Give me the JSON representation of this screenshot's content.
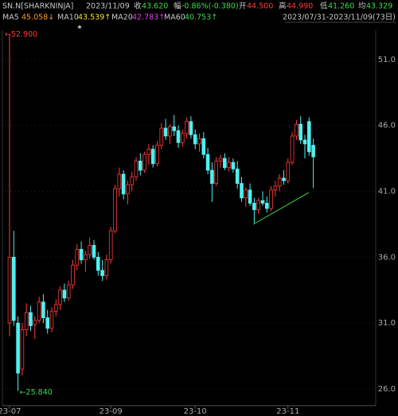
{
  "header": {
    "symbol": "SN.N[SHARKNINJA]",
    "date": "2023/11/09",
    "quote": [
      {
        "label": "收",
        "value": "43.620",
        "color": "#3ddc4a"
      },
      {
        "label": "幅",
        "value": "-0.86%(-0.380)",
        "color": "#3ddc4a"
      },
      {
        "label": "开",
        "value": "44.500",
        "color": "#ff3b3b"
      },
      {
        "label": "高",
        "value": "44.990",
        "color": "#ff3b3b"
      },
      {
        "label": "低",
        "value": "41.260",
        "color": "#3ddc4a"
      },
      {
        "label": "均",
        "value": "43.329",
        "color": "#3ddc4a"
      }
    ],
    "ma": [
      {
        "label": "MA5",
        "value": "45.058↓",
        "color": "#ff9a1f"
      },
      {
        "label": "MA10",
        "value": "43.539↑",
        "color": "#f2e12c"
      },
      {
        "label": "MA20",
        "value": "42.783↑",
        "color": "#e040e8"
      },
      {
        "label": "MA60",
        "value": "40.753↑",
        "color": "#3ddc4a"
      }
    ],
    "range": "2023/07/31-2023/11/09(73日)"
  },
  "chart_data": {
    "type": "candlestick",
    "categories": [
      "23-07",
      null,
      null,
      null,
      null,
      null,
      null,
      null,
      null,
      null,
      null,
      null,
      null,
      null,
      null,
      null,
      null,
      null,
      null,
      null,
      null,
      null,
      null,
      null,
      "23-09",
      null,
      null,
      null,
      null,
      null,
      null,
      null,
      null,
      null,
      null,
      null,
      null,
      null,
      null,
      null,
      null,
      null,
      null,
      null,
      "23-10",
      null,
      null,
      null,
      null,
      null,
      null,
      null,
      null,
      null,
      null,
      null,
      null,
      null,
      null,
      null,
      null,
      null,
      null,
      null,
      null,
      null,
      "23-11",
      null,
      null,
      null,
      null,
      null,
      null
    ],
    "open": [
      31,
      36,
      31,
      27.5,
      30.5,
      31.8,
      30.9,
      31.2,
      32.6,
      31.4,
      30.6,
      31.9,
      32.4,
      33.5,
      32.9,
      33.9,
      35.4,
      36.6,
      35.8,
      36.2,
      36.9,
      36,
      35,
      34.6,
      35.8,
      38,
      41.2,
      42.3,
      40.8,
      41.5,
      42.1,
      43.3,
      42.6,
      43.8,
      44.2,
      43.1,
      44.5,
      45.8,
      45.2,
      45.9,
      45.6,
      44.7,
      45.4,
      46.3,
      45.3,
      44.6,
      45,
      43.8,
      42.6,
      41.6,
      43.3,
      43.5,
      42.8,
      43.2,
      42.7,
      41.6,
      40.5,
      41.1,
      40.1,
      39.6,
      40.3,
      40.1,
      39.7,
      41.1,
      41.4,
      42,
      41.8,
      43.2,
      45.2,
      46.1,
      44.9,
      46.3,
      44.5
    ],
    "high": [
      52.9,
      38,
      31.5,
      31,
      32.5,
      32.3,
      31.5,
      33,
      33.2,
      32,
      32.2,
      32.8,
      33.8,
      34,
      34.2,
      35.8,
      37,
      37.2,
      36.5,
      37.5,
      37.3,
      36.4,
      35.8,
      36.2,
      38.3,
      41.5,
      42.8,
      42.6,
      41.8,
      42.5,
      43.6,
      43.9,
      44,
      44.6,
      44.5,
      44.8,
      46.2,
      46.5,
      46.1,
      46.8,
      46,
      45.7,
      46.6,
      46.7,
      45.7,
      45.4,
      45.5,
      44.3,
      43.2,
      43.6,
      43.8,
      43.9,
      43.6,
      43.5,
      43.3,
      42.1,
      41.3,
      41.6,
      40.5,
      40.5,
      41,
      40.6,
      41.4,
      41.8,
      42.3,
      42.6,
      43.5,
      45.5,
      46.4,
      46.7,
      45.3,
      46.6,
      44.99
    ],
    "low": [
      30,
      30.8,
      25.84,
      27,
      30,
      30.4,
      29.8,
      31,
      31,
      30.2,
      30.3,
      31.5,
      32,
      32.6,
      32.7,
      33.6,
      35,
      35.5,
      34.9,
      35.9,
      35.8,
      34.6,
      34.2,
      34.3,
      35.5,
      37.8,
      40.6,
      40.4,
      40,
      41,
      41.8,
      42.2,
      42.4,
      43,
      42.8,
      42.9,
      44.2,
      44.9,
      44.6,
      45.2,
      44.3,
      44.4,
      45,
      45,
      44.2,
      44,
      43.5,
      42.3,
      40.2,
      41.4,
      42.8,
      42.6,
      42.5,
      42.4,
      41.2,
      40.2,
      39.8,
      39.9,
      38.6,
      39.3,
      39.9,
      39.4,
      39.5,
      40.6,
      41,
      41.5,
      41.6,
      43,
      44.9,
      44.6,
      43.5,
      43.7,
      41.26
    ],
    "close": [
      36,
      31.2,
      27.2,
      30.5,
      31.8,
      30.8,
      31.2,
      32.6,
      31.4,
      30.6,
      31.9,
      32.4,
      33.5,
      32.9,
      33.9,
      35.4,
      36.6,
      35.8,
      36.2,
      36.9,
      36,
      35,
      34.6,
      35.8,
      38,
      41.2,
      42.3,
      40.8,
      41.5,
      42.1,
      43.3,
      42.6,
      43.8,
      44.2,
      43.1,
      44.5,
      45.8,
      45.2,
      45.9,
      45.6,
      44.7,
      45.4,
      46.3,
      45.3,
      44.6,
      45,
      43.8,
      42.6,
      41.6,
      43.3,
      43.5,
      42.8,
      43.2,
      42.7,
      41.6,
      40.5,
      41.1,
      40.1,
      39.6,
      40.3,
      40.1,
      39.7,
      41.1,
      41.4,
      42,
      41.8,
      43.2,
      45.2,
      46.1,
      44.9,
      44.6,
      44,
      43.62
    ],
    "up_color": "#ff3b3b",
    "down_color": "#4ff0f0",
    "ylim": [
      24.73,
      53.23
    ],
    "yticks": [
      {
        "value": 26,
        "label": "26.0"
      },
      {
        "value": 31,
        "label": "31.0"
      },
      {
        "value": 36,
        "label": "36.0"
      },
      {
        "value": 41,
        "label": "41.0"
      },
      {
        "value": 46,
        "label": "46.0"
      },
      {
        "value": 51,
        "label": "51.0"
      }
    ],
    "annotations": {
      "high": "←52.900",
      "low": "←25.840"
    }
  }
}
